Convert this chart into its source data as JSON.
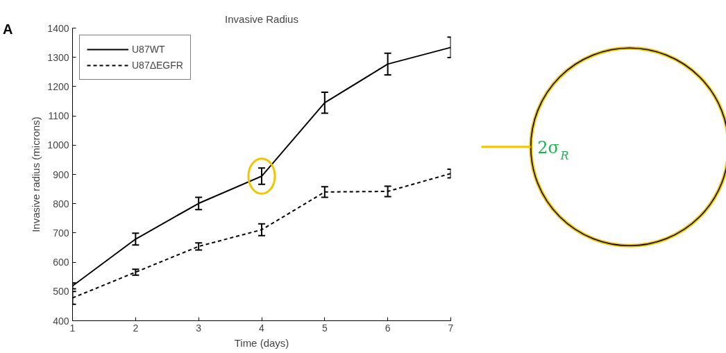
{
  "chart_data": {
    "type": "line",
    "title": "Invasive Radius",
    "xlabel": "Time (days)",
    "ylabel": "Invasive radius (microns)",
    "x": [
      1,
      2,
      3,
      4,
      5,
      6,
      7
    ],
    "series": [
      {
        "name": "U87WT",
        "color": "#000000",
        "line_style": "solid",
        "values": [
          519,
          679,
          801,
          894,
          1145,
          1277,
          1334
        ],
        "errors": [
          10,
          20,
          21,
          28,
          36,
          37,
          35
        ]
      },
      {
        "name": "U87ΔEGFR",
        "color": "#000000",
        "line_style": "dashed",
        "values": [
          478,
          566,
          654,
          711,
          840,
          842,
          903
        ],
        "errors": [
          22,
          10,
          12,
          20,
          18,
          18,
          15
        ]
      }
    ],
    "xlim": [
      1,
      7
    ],
    "xticks": [
      1,
      2,
      3,
      4,
      5,
      6,
      7
    ],
    "ylim": [
      400,
      1400
    ],
    "yticks": [
      400,
      500,
      600,
      700,
      800,
      900,
      1000,
      1100,
      1200,
      1300,
      1400
    ],
    "grid": false,
    "legend": "top left",
    "marker": "none",
    "annotations": [
      "A",
      "2σ$_{R}$"
    ]
  }
}
